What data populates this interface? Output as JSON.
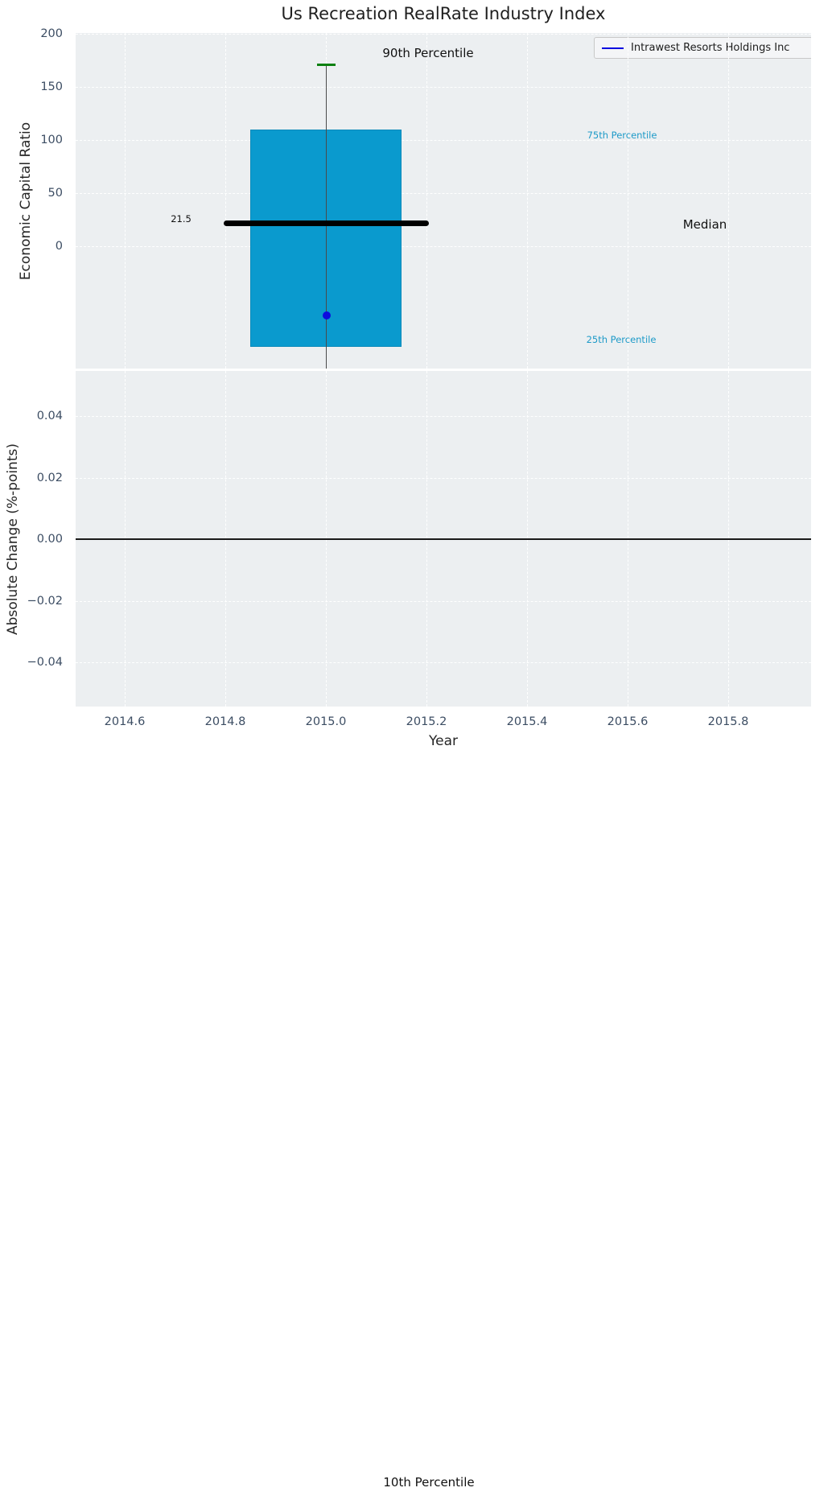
{
  "figure": {
    "title": "Us Recreation RealRate Industry Index"
  },
  "legend": {
    "label": "Intrawest Resorts Holdings Inc"
  },
  "top_chart": {
    "ylabel": "Economic Capital Ratio",
    "yticks": [
      {
        "v": 200,
        "label": "200"
      },
      {
        "v": 150,
        "label": "150"
      },
      {
        "v": 100,
        "label": "100"
      },
      {
        "v": 50,
        "label": "50"
      },
      {
        "v": 0,
        "label": "0"
      }
    ],
    "annotations": {
      "p90_label": "90th Percentile",
      "p75_label": "75th Percentile",
      "median_label": "Median",
      "p25_label": "25th Percentile",
      "p10_label": "10th Percentile",
      "median_value_label": "21.5"
    }
  },
  "bottom_chart": {
    "ylabel": "Absolute Change (%-points)",
    "xlabel": "Year",
    "yticks": [
      {
        "v": 0.04,
        "label": "0.04"
      },
      {
        "v": 0.02,
        "label": "0.02"
      },
      {
        "v": 0,
        "label": "0.00"
      },
      {
        "v": -0.02,
        "label": "−0.02"
      },
      {
        "v": -0.04,
        "label": "−0.04"
      }
    ],
    "xticks": [
      {
        "v": 2014.6,
        "label": "2014.6"
      },
      {
        "v": 2014.8,
        "label": "2014.8"
      },
      {
        "v": 2015.0,
        "label": "2015.0"
      },
      {
        "v": 2015.2,
        "label": "2015.2"
      },
      {
        "v": 2015.4,
        "label": "2015.4"
      },
      {
        "v": 2015.6,
        "label": "2015.6"
      },
      {
        "v": 2015.8,
        "label": "2015.8"
      }
    ]
  },
  "chart_data": [
    {
      "type": "box",
      "title": "Us Recreation RealRate Industry Index",
      "ylabel": "Economic Capital Ratio",
      "categories": [
        2015.0
      ],
      "box": {
        "year": 2015.0,
        "median": 21.5,
        "q1": -95,
        "q3": 110,
        "p90": 171,
        "p10": "off-scale below axis (label shown at figure bottom)",
        "box_halfwidth_years": 0.151,
        "median_halfwidth_years": 0.204,
        "cap_halfwidth_years": 0.018
      },
      "points": [
        {
          "name": "Intrawest Resorts Holdings Inc",
          "year": 2015.0,
          "value": -65
        }
      ],
      "ylim": [
        -115,
        200
      ],
      "xlim": [
        2014.5,
        2015.97
      ],
      "grid": true,
      "legend_position": "upper right",
      "legend_entries": [
        "Intrawest Resorts Holdings Inc"
      ]
    },
    {
      "type": "line",
      "ylabel": "Absolute Change (%-points)",
      "xlabel": "Year",
      "hline": 0.0,
      "series": [],
      "ylim": [
        -0.0545,
        0.0545
      ],
      "xlim": [
        2014.5,
        2015.97
      ],
      "grid": true
    }
  ],
  "colors": {
    "axes_bg": "#eceff1",
    "grid": "#ffffff",
    "box_fill": "#0a9ace",
    "box_edge": "#0889ba",
    "median_line": "#000000",
    "whisker": "#4a4a4a",
    "cap_90th": "#0b8011",
    "company_point": "#0d0dde",
    "zero_line": "#1a1a1a",
    "tick_text": "#3c4d63",
    "annotation_cyan": "#1d9ac8",
    "annotation_dark": "#111111",
    "legend_line": "#0000e0",
    "legend_bg": "#f4f5f7",
    "legend_border": "#c8c8c8",
    "title_text": "#1f1f1f"
  }
}
